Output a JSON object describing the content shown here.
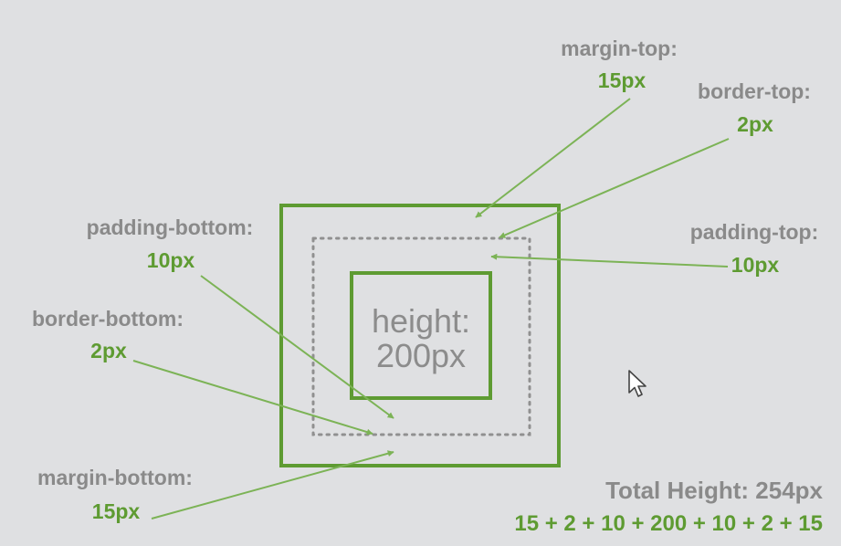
{
  "diagram": {
    "content_box": {
      "line1": "height:",
      "line2": "200px"
    },
    "annotations": {
      "margin_top": {
        "name": "margin-top:",
        "value": "15px"
      },
      "border_top": {
        "name": "border-top:",
        "value": "2px"
      },
      "padding_top": {
        "name": "padding-top:",
        "value": "10px"
      },
      "padding_bottom": {
        "name": "padding-bottom:",
        "value": "10px"
      },
      "border_bottom": {
        "name": "border-bottom:",
        "value": "2px"
      },
      "margin_bottom": {
        "name": "margin-bottom:",
        "value": "15px"
      }
    },
    "total": {
      "label": "Total Height: 254px",
      "formula": "15 + 2 + 10 + 200 + 10 + 2 + 15"
    }
  },
  "colors": {
    "background": "#dfe0e2",
    "accent_green": "#5e9b32",
    "arrow_green": "#7cb356",
    "label_gray": "#8a8a8a",
    "dotted_gray": "#909090"
  },
  "cursor": {
    "icon": "mouse-pointer-icon"
  }
}
